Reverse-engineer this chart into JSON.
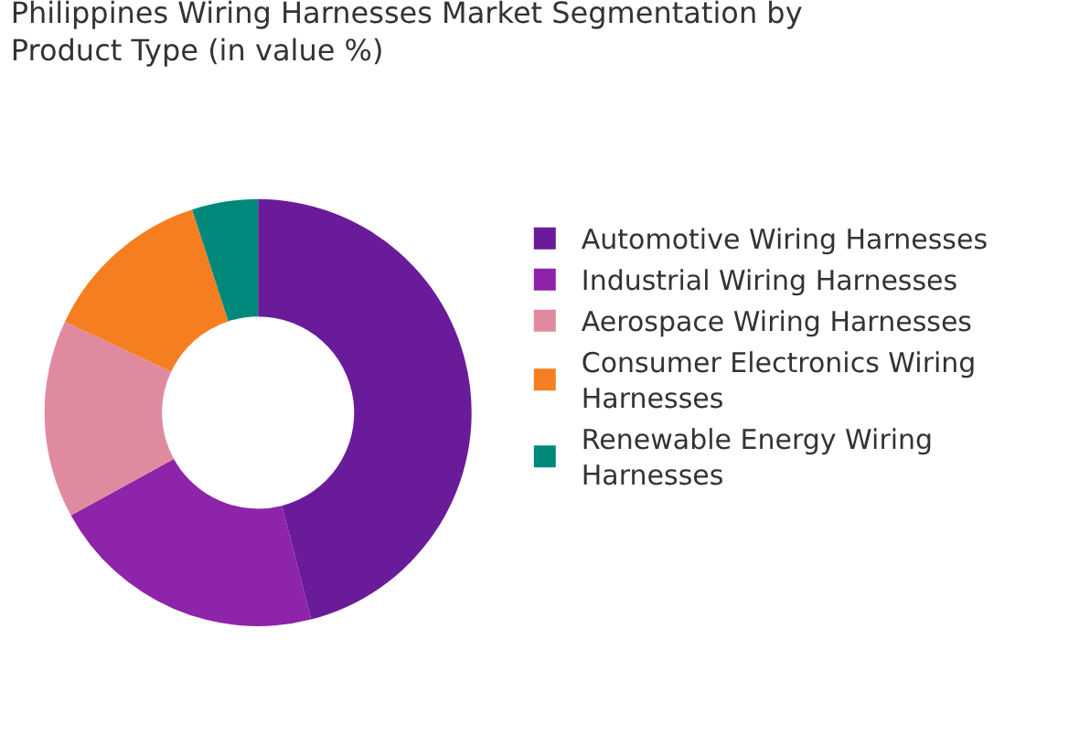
{
  "chart_data": {
    "type": "donut",
    "title": "Philippines Wiring Harnesses Market Segmentation by Product Type (in value %)",
    "categories": [
      "Automotive Wiring Harnesses",
      "Industrial Wiring Harnesses",
      "Aerospace Wiring Harnesses",
      "Consumer Electronics Wiring Harnesses",
      "Renewable Energy Wiring Harnesses"
    ],
    "values": [
      46,
      21,
      15,
      13,
      5
    ],
    "colors": [
      "#6a1b9a",
      "#8e24aa",
      "#e08aa0",
      "#f57f20",
      "#00897b"
    ],
    "legend": "right"
  }
}
